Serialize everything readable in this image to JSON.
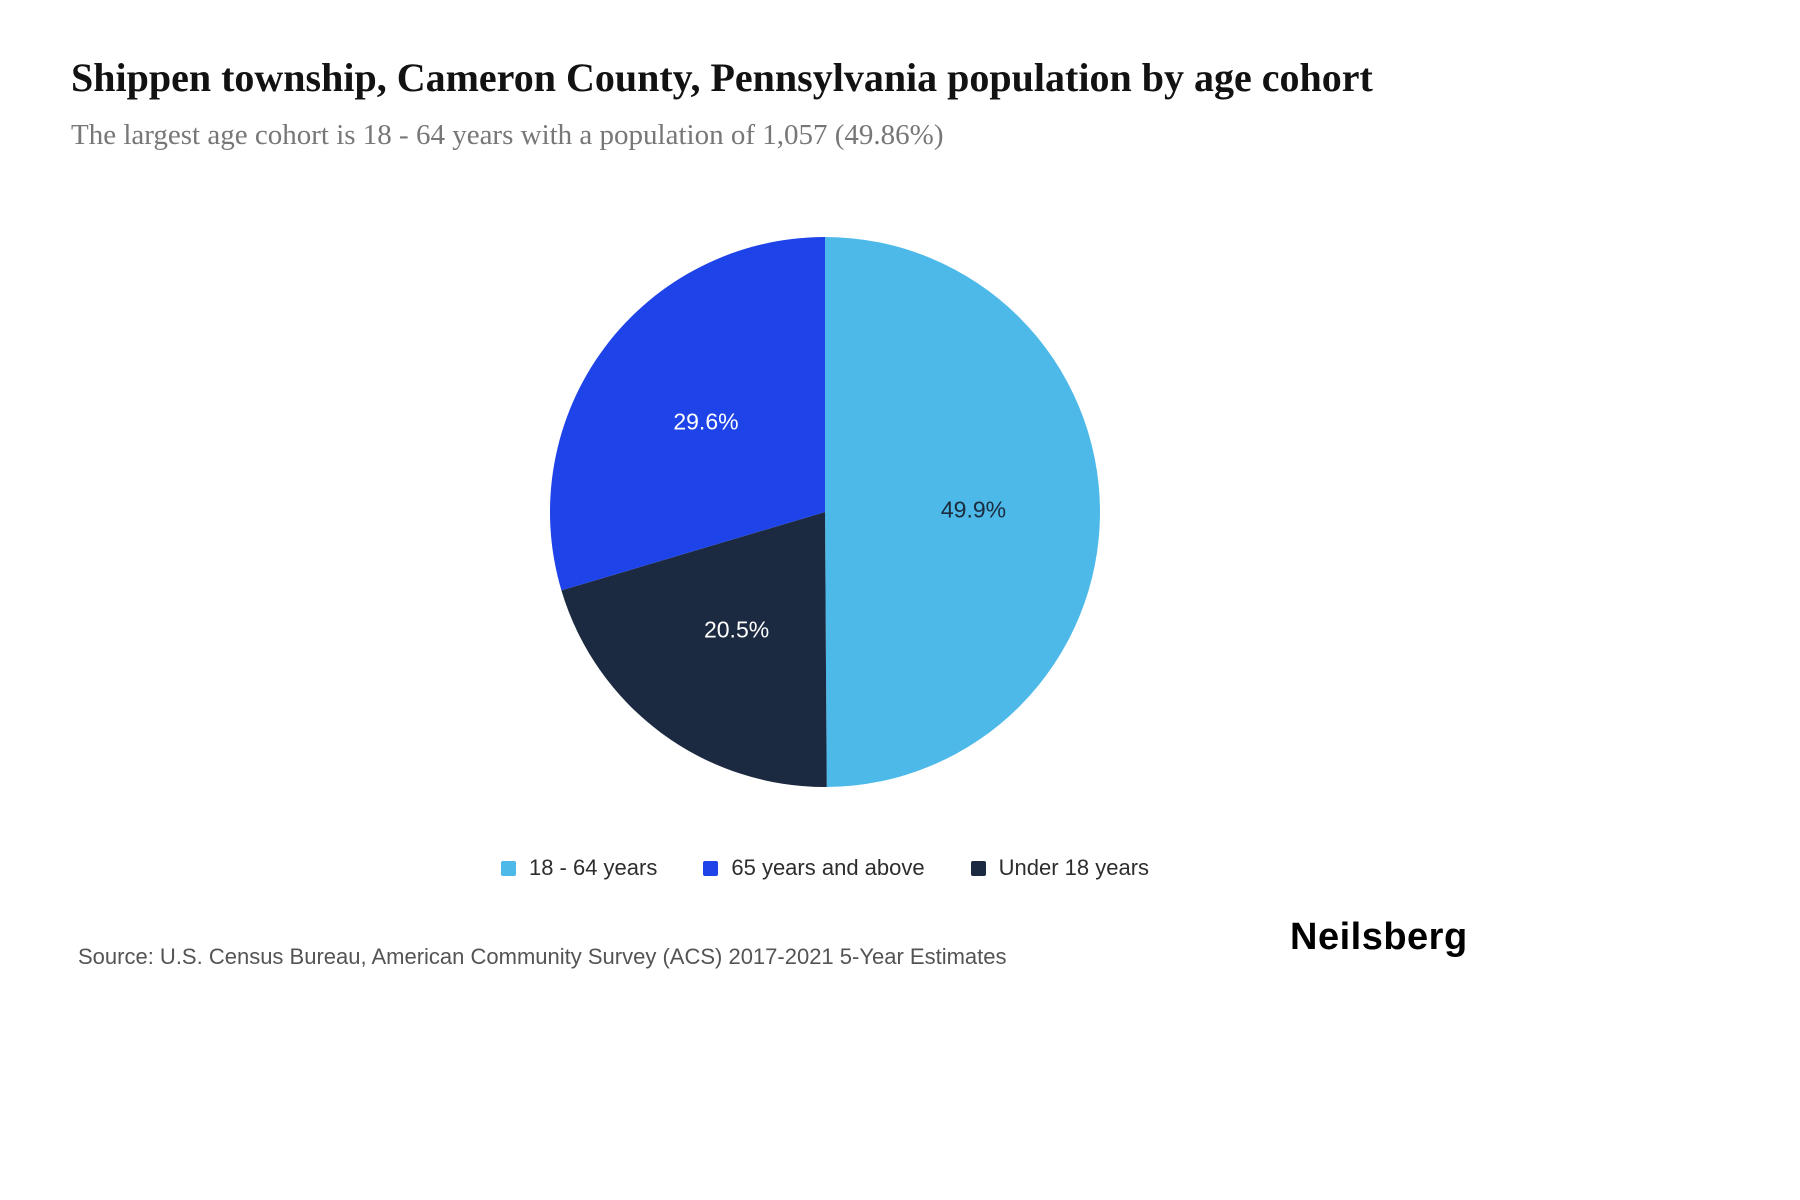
{
  "header": {
    "title": "Shippen township, Cameron County, Pennsylvania population by age cohort",
    "subtitle": "The largest age cohort is 18 - 64 years with a population of 1,057 (49.86%)"
  },
  "chart_data": {
    "type": "pie",
    "title": "Shippen township, Cameron County, Pennsylvania population by age cohort",
    "legend_position": "bottom",
    "start_angle_deg": 0,
    "direction": "clockwise",
    "label_radius_fraction": 0.54,
    "series": [
      {
        "name": "18 - 64 years",
        "value": 49.9,
        "label": "49.9%",
        "color": "#4CB9E8",
        "label_color": "#1C2B3E"
      },
      {
        "name": "65 years and above",
        "value": 29.6,
        "label": "29.6%",
        "color": "#1E43E8",
        "label_color": "#FFFFFF"
      },
      {
        "name": "Under 18 years",
        "value": 20.5,
        "label": "20.5%",
        "color": "#1B2A41",
        "label_color": "#FFFFFF"
      }
    ],
    "draw_order": [
      0,
      2,
      1
    ]
  },
  "footer": {
    "source": "Source: U.S. Census Bureau, American Community Survey (ACS) 2017-2021 5-Year Estimates",
    "brand": "Neilsberg"
  }
}
